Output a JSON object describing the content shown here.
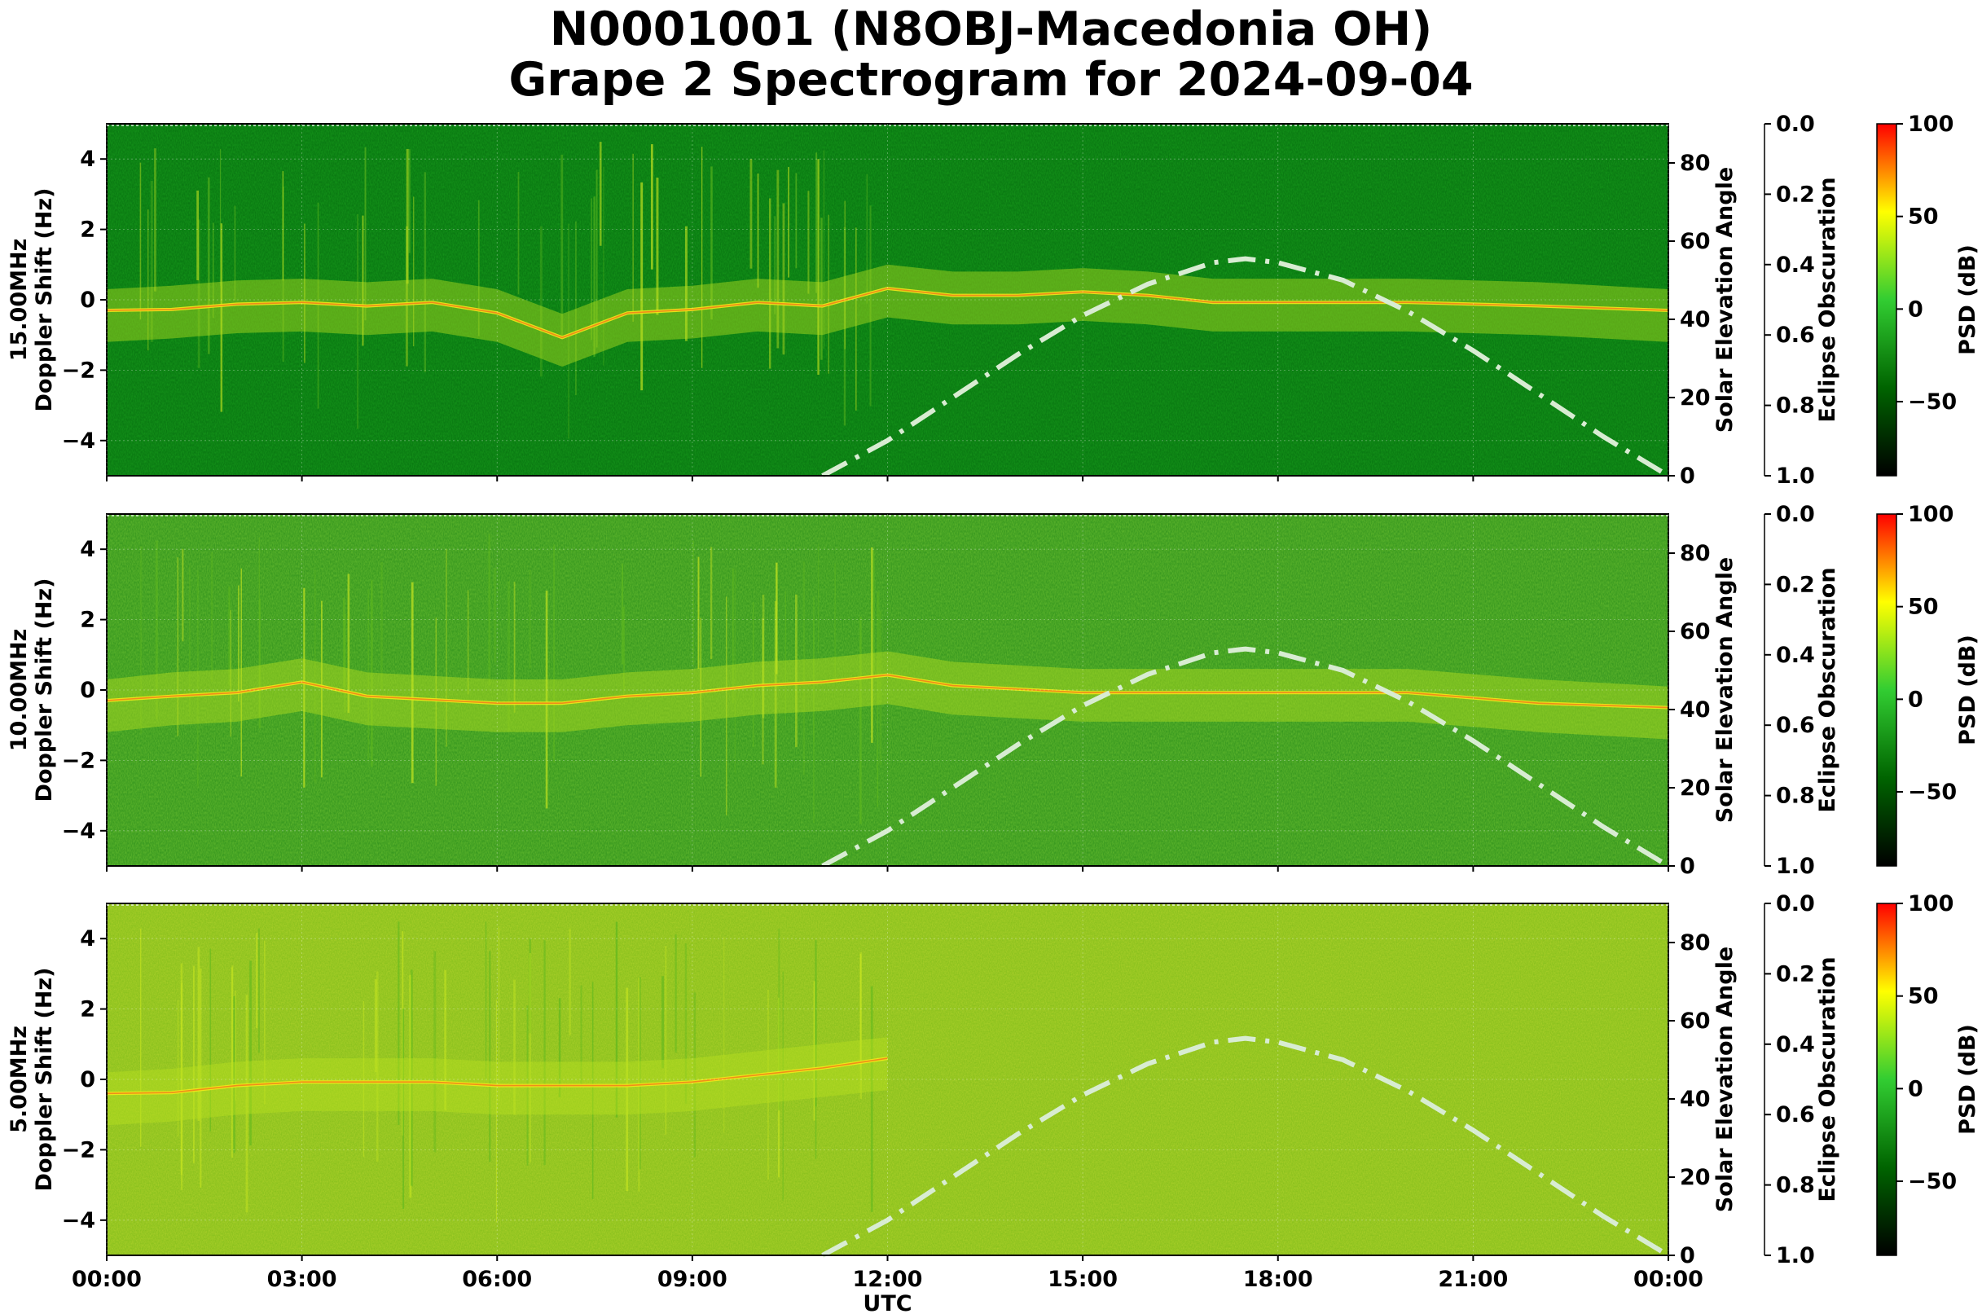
{
  "title": "N0001001 (N8OBJ-Macedonia OH)",
  "subtitle": "Grape 2 Spectrogram for 2024-09-04",
  "xlabel": "UTC",
  "x_tick_labels": [
    "00:00",
    "03:00",
    "06:00",
    "09:00",
    "12:00",
    "15:00",
    "18:00",
    "21:00",
    "00:00"
  ],
  "colors": {
    "solar_curve": "#d8ecd2",
    "colormap": [
      "#000000",
      "#006400",
      "#32cd32",
      "#ffff00",
      "#ff0000"
    ]
  },
  "chart_data": [
    {
      "type": "heatmap",
      "panel": "15.00MHz",
      "ylabel_left": "15.00MHz\nDoppler Shift (Hz)",
      "ylabel_right": "Solar Elevation Angle",
      "eclipse_label": "Eclipse Obscuration",
      "colorbar_label": "PSD (dB)",
      "x_range_hours": [
        0,
        24
      ],
      "doppler_range_hz": [
        -5,
        5
      ],
      "doppler_ticks": [
        4,
        2,
        0,
        -2,
        -4
      ],
      "doppler_tick_labels": [
        "4",
        "2",
        "0",
        "−2",
        "−4"
      ],
      "elevation_ticks": [
        80,
        60,
        40,
        20,
        0
      ],
      "elevation_range": [
        0,
        90
      ],
      "obscuration_ticks": [
        "0.0",
        "0.2",
        "0.4",
        "0.6",
        "0.8",
        "1.0"
      ],
      "psd_range_db": [
        -90,
        100
      ],
      "psd_ticks": [
        100,
        50,
        0,
        -50
      ],
      "psd_tick_labels": [
        "100",
        "50",
        "0",
        "−50"
      ],
      "background_level": "dark",
      "doppler_trace": [
        [
          0,
          -0.3
        ],
        [
          1,
          -0.2
        ],
        [
          2,
          -0.05
        ],
        [
          3,
          0.0
        ],
        [
          4,
          -0.1
        ],
        [
          5,
          0.0
        ],
        [
          6,
          -0.3
        ],
        [
          7,
          -1.0
        ],
        [
          8,
          -0.3
        ],
        [
          9,
          -0.2
        ],
        [
          10,
          0.0
        ],
        [
          11,
          -0.1
        ],
        [
          12,
          0.4
        ],
        [
          13,
          0.2
        ],
        [
          14,
          0.2
        ],
        [
          15,
          0.3
        ],
        [
          16,
          0.2
        ],
        [
          17,
          0.0
        ],
        [
          18,
          0.0
        ],
        [
          20,
          0.0
        ],
        [
          22,
          -0.1
        ],
        [
          24,
          -0.3
        ]
      ],
      "solar_elevation": [
        [
          11,
          0
        ],
        [
          12,
          9
        ],
        [
          13,
          20
        ],
        [
          14,
          31
        ],
        [
          15,
          41
        ],
        [
          16,
          49
        ],
        [
          17,
          54.5
        ],
        [
          17.5,
          55.5
        ],
        [
          18,
          54.5
        ],
        [
          19,
          50
        ],
        [
          20,
          42
        ],
        [
          21,
          32
        ],
        [
          22,
          21
        ],
        [
          23,
          10
        ],
        [
          24,
          0
        ]
      ]
    },
    {
      "type": "heatmap",
      "panel": "10.00MHz",
      "ylabel_left": "10.00MHz\nDoppler Shift (Hz)",
      "ylabel_right": "Solar Elevation Angle",
      "eclipse_label": "Eclipse Obscuration",
      "colorbar_label": "PSD (dB)",
      "x_range_hours": [
        0,
        24
      ],
      "doppler_range_hz": [
        -5,
        5
      ],
      "doppler_ticks": [
        4,
        2,
        0,
        -2,
        -4
      ],
      "doppler_tick_labels": [
        "4",
        "2",
        "0",
        "−2",
        "−4"
      ],
      "elevation_ticks": [
        80,
        60,
        40,
        20,
        0
      ],
      "elevation_range": [
        0,
        90
      ],
      "obscuration_ticks": [
        "0.0",
        "0.2",
        "0.4",
        "0.6",
        "0.8",
        "1.0"
      ],
      "psd_range_db": [
        -90,
        100
      ],
      "psd_ticks": [
        100,
        50,
        0,
        -50
      ],
      "psd_tick_labels": [
        "100",
        "50",
        "0",
        "−50"
      ],
      "background_level": "mid",
      "doppler_trace": [
        [
          0,
          -0.3
        ],
        [
          1,
          -0.1
        ],
        [
          2,
          0.0
        ],
        [
          3,
          0.3
        ],
        [
          4,
          -0.1
        ],
        [
          5,
          -0.2
        ],
        [
          6,
          -0.3
        ],
        [
          7,
          -0.3
        ],
        [
          8,
          -0.1
        ],
        [
          9,
          0.0
        ],
        [
          10,
          0.2
        ],
        [
          11,
          0.3
        ],
        [
          12,
          0.5
        ],
        [
          13,
          0.2
        ],
        [
          14,
          0.1
        ],
        [
          15,
          0.0
        ],
        [
          16,
          0.0
        ],
        [
          18,
          0.0
        ],
        [
          20,
          0.0
        ],
        [
          22,
          -0.3
        ],
        [
          24,
          -0.5
        ]
      ],
      "solar_elevation": [
        [
          11,
          0
        ],
        [
          12,
          9
        ],
        [
          13,
          20
        ],
        [
          14,
          31
        ],
        [
          15,
          41
        ],
        [
          16,
          49
        ],
        [
          17,
          54.5
        ],
        [
          17.5,
          55.5
        ],
        [
          18,
          54.5
        ],
        [
          19,
          50
        ],
        [
          20,
          42
        ],
        [
          21,
          32
        ],
        [
          22,
          21
        ],
        [
          23,
          10
        ],
        [
          24,
          0
        ]
      ]
    },
    {
      "type": "heatmap",
      "panel": "5.00MHz",
      "ylabel_left": "5.00MHz\nDoppler Shift (Hz)",
      "ylabel_right": "Solar Elevation Angle",
      "eclipse_label": "Eclipse Obscuration",
      "colorbar_label": "PSD (dB)",
      "x_range_hours": [
        0,
        24
      ],
      "doppler_range_hz": [
        -5,
        5
      ],
      "doppler_ticks": [
        4,
        2,
        0,
        -2,
        -4
      ],
      "doppler_tick_labels": [
        "4",
        "2",
        "0",
        "−2",
        "−4"
      ],
      "elevation_ticks": [
        80,
        60,
        40,
        20,
        0
      ],
      "elevation_range": [
        0,
        90
      ],
      "obscuration_ticks": [
        "0.0",
        "0.2",
        "0.4",
        "0.6",
        "0.8",
        "1.0"
      ],
      "psd_range_db": [
        -90,
        100
      ],
      "psd_ticks": [
        100,
        50,
        0,
        -50
      ],
      "psd_tick_labels": [
        "100",
        "50",
        "0",
        "−50"
      ],
      "background_level": "bright",
      "doppler_trace": [
        [
          0,
          -0.4
        ],
        [
          1,
          -0.3
        ],
        [
          2,
          -0.1
        ],
        [
          3,
          0.0
        ],
        [
          4,
          0.0
        ],
        [
          5,
          0.0
        ],
        [
          6,
          -0.1
        ],
        [
          7,
          -0.1
        ],
        [
          8,
          -0.1
        ],
        [
          9,
          0.0
        ],
        [
          10,
          0.2
        ],
        [
          11,
          0.4
        ],
        [
          12,
          0.6
        ]
      ],
      "solar_elevation": [
        [
          11,
          0
        ],
        [
          12,
          9
        ],
        [
          13,
          20
        ],
        [
          14,
          31
        ],
        [
          15,
          41
        ],
        [
          16,
          49
        ],
        [
          17,
          54.5
        ],
        [
          17.5,
          55.5
        ],
        [
          18,
          54.5
        ],
        [
          19,
          50
        ],
        [
          20,
          42
        ],
        [
          21,
          32
        ],
        [
          22,
          21
        ],
        [
          23,
          10
        ],
        [
          24,
          0
        ]
      ]
    }
  ]
}
